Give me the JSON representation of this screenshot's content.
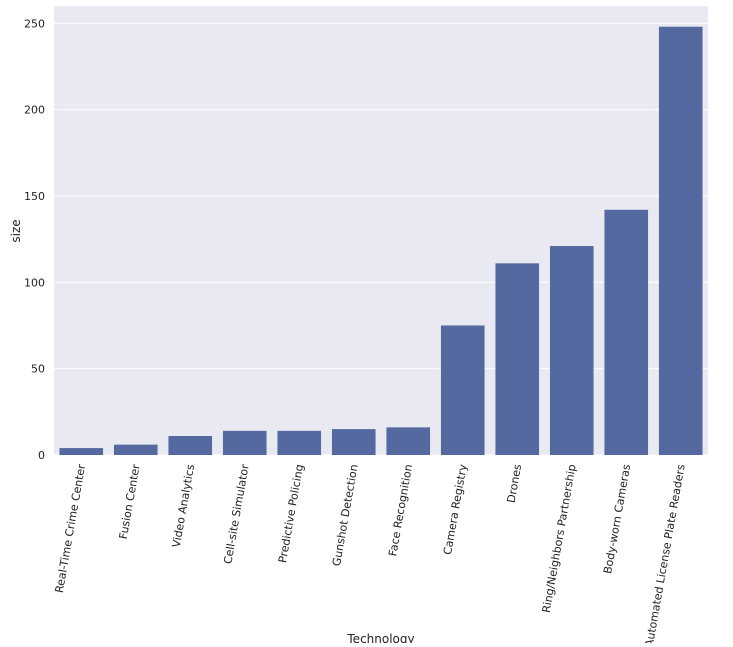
{
  "chart_data": {
    "type": "bar",
    "title": "",
    "xlabel": "Technology",
    "ylabel": "size",
    "ylim": [
      0,
      260
    ],
    "yticks": [
      0,
      50,
      100,
      150,
      200,
      250
    ],
    "grid": true,
    "legend": "none",
    "colors": {
      "bar": "#5469a0",
      "plot_background": "#e9e9f1",
      "gridline": "#ffffff"
    },
    "categories": [
      "Real-Time Crime Center",
      "Fusion Center",
      "Video Analytics",
      "Cell-site Simulator",
      "Predictive Policing",
      "Gunshot Detection",
      "Face Recognition",
      "Camera Registry",
      "Drones",
      "Ring/Neighbors Partnership",
      "Body-worn Cameras",
      "Automated License Plate Readers"
    ],
    "values": [
      4,
      6,
      11,
      14,
      14,
      15,
      16,
      75,
      111,
      121,
      142,
      248
    ]
  }
}
